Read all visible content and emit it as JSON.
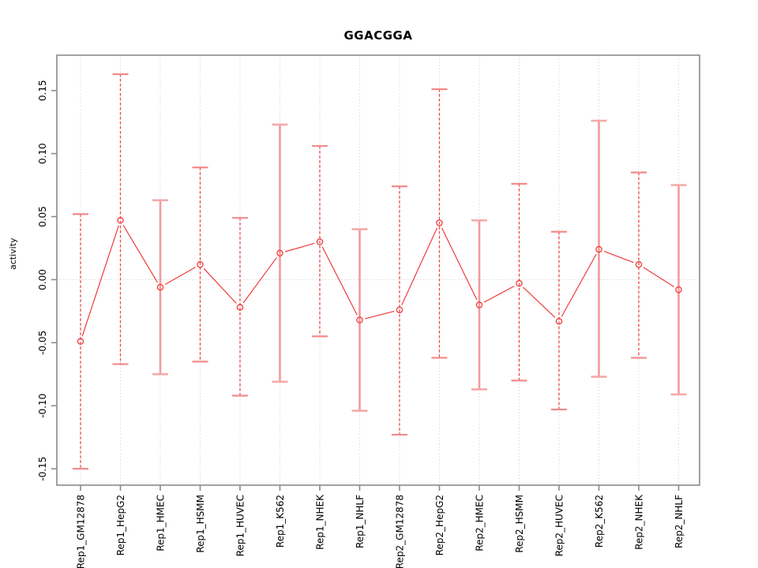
{
  "figure": {
    "title": "GGACGGA",
    "background_color": "#ffffff"
  },
  "chart_data": {
    "type": "line",
    "subtype": "points-with-error-bars",
    "title": "GGACGGA",
    "xlabel": "",
    "ylabel": "activity",
    "legend": "none",
    "grid": "vertical dotted gridline at each category; dotted horizontal line at zero",
    "ylim": [
      -0.163,
      0.178
    ],
    "y_ticks": [
      {
        "label": "0.15",
        "value": 0.15
      },
      {
        "label": "0.10",
        "value": 0.1
      },
      {
        "label": "0.05",
        "value": 0.05
      },
      {
        "label": "0.00",
        "value": 0.0
      },
      {
        "label": "-0.05",
        "value": -0.05
      },
      {
        "label": "-0.10",
        "value": -0.1
      },
      {
        "label": "-0.15",
        "value": -0.15
      }
    ],
    "categories": [
      "Rep1_GM12878",
      "Rep1_HepG2",
      "Rep1_HMEC",
      "Rep1_HSMM",
      "Rep1_HUVEC",
      "Rep1_K562",
      "Rep1_NHEK",
      "Rep1_NHLF",
      "Rep2_GM12878",
      "Rep2_HepG2",
      "Rep2_HMEC",
      "Rep2_HSMM",
      "Rep2_HUVEC",
      "Rep2_K562",
      "Rep2_NHEK",
      "Rep2_NHLF"
    ],
    "series": [
      {
        "name": "activity",
        "values": [
          -0.049,
          0.047,
          -0.006,
          0.012,
          -0.022,
          0.021,
          0.03,
          -0.032,
          -0.024,
          0.045,
          -0.02,
          -0.003,
          -0.033,
          0.024,
          0.012,
          -0.008
        ],
        "lower": [
          -0.15,
          -0.067,
          -0.075,
          -0.065,
          -0.092,
          -0.081,
          -0.045,
          -0.104,
          -0.123,
          -0.062,
          -0.087,
          -0.08,
          -0.103,
          -0.077,
          -0.062,
          -0.091
        ],
        "upper": [
          0.052,
          0.163,
          0.063,
          0.089,
          0.049,
          0.123,
          0.106,
          0.04,
          0.074,
          0.151,
          0.047,
          0.076,
          0.038,
          0.126,
          0.085,
          0.075
        ],
        "bar_styles": [
          "dashed",
          "dashed",
          "solid",
          "dashed",
          "dashed",
          "solid",
          "dashed",
          "solid",
          "dashed",
          "dashed",
          "solid",
          "dashed",
          "dashed",
          "solid",
          "dashed",
          "solid"
        ]
      }
    ],
    "colors": {
      "point_stroke": "#ef3b3b",
      "connector_line": "#ef3b3b",
      "error_bar_dashed": "#ee4747",
      "error_bar_dashed_cap": "#f28a8a",
      "error_bar_solid": "#f29b9b",
      "error_bar_solid_cap": "#f4aaaa",
      "grid_line": "#dbdbdb",
      "axis_box": "#8a8a8a",
      "tick_mark": "#8a8a8a",
      "tick_label": "#000000"
    }
  }
}
